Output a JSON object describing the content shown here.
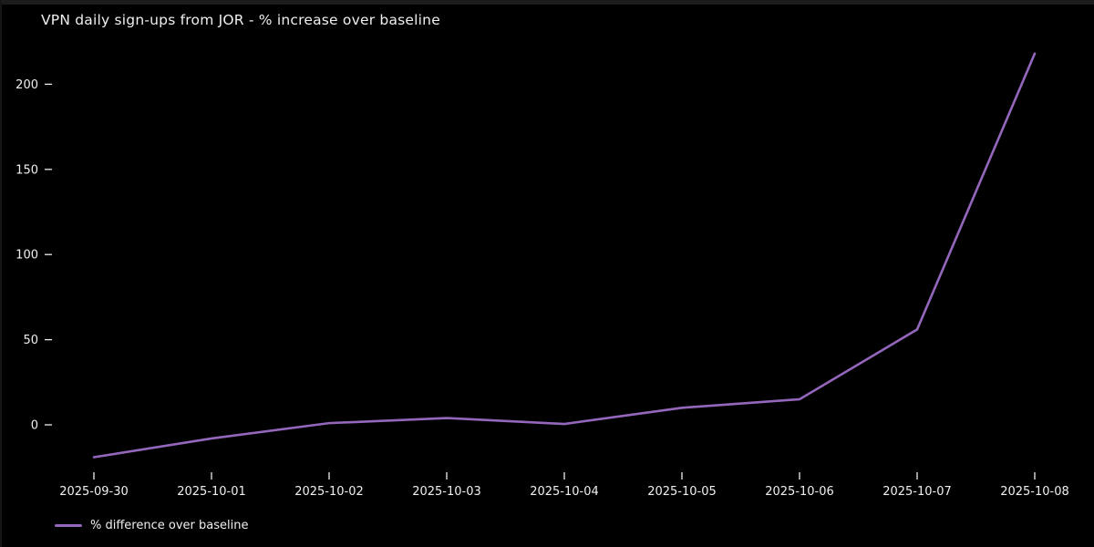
{
  "window": {
    "background": "#000000",
    "edge_color": "#1c1c1c"
  },
  "chart_data": {
    "type": "line",
    "title": "VPN daily sign-ups from JOR - % increase over baseline",
    "xlabel": "",
    "ylabel": "",
    "x": [
      "2025-09-30",
      "2025-10-01",
      "2025-10-02",
      "2025-10-03",
      "2025-10-04",
      "2025-10-05",
      "2025-10-06",
      "2025-10-07",
      "2025-10-08"
    ],
    "series": [
      {
        "name": "% difference over baseline",
        "color": "#9467bd",
        "values": [
          -19,
          -8,
          1,
          4,
          0.5,
          10,
          15,
          56,
          218
        ]
      }
    ],
    "y_ticks": [
      0,
      50,
      100,
      150,
      200
    ],
    "ylim": [
      -26,
      225
    ],
    "grid": false,
    "legend_position": "lower-left-outside",
    "background": "#000000",
    "text_color": "#efefef"
  }
}
